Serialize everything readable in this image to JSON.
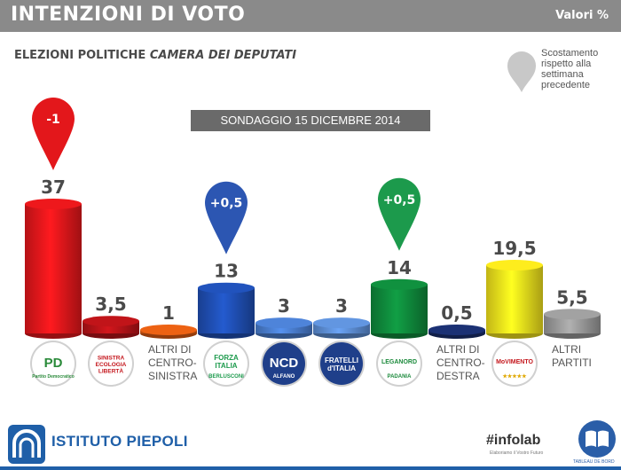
{
  "header": {
    "title": "INTENZIONI DI VOTO",
    "unit": "Valori %"
  },
  "subtitle": {
    "prefix": "ELEZIONI POLITICHE ",
    "emphasis": "CAMERA DEI DEPUTATI"
  },
  "legend": {
    "text": "Scostamento rispetto alla settimana precedente"
  },
  "survey_label": "SONDAGGIO 15 DICEMBRE 2014",
  "chart_data": {
    "type": "bar",
    "title": "INTENZIONI DI VOTO",
    "subtitle": "ELEZIONI POLITICHE CAMERA DEI DEPUTATI",
    "ylabel": "Valori %",
    "ylim": [
      0,
      40
    ],
    "grid": false,
    "categories": [
      "Partito Democratico",
      "Sinistra Ecologia Libertà",
      "ALTRI DI CENTRO-SINISTRA",
      "Forza Italia",
      "NCD Alfano",
      "Fratelli d'Italia",
      "Lega Nord",
      "ALTRI DI CENTRO-DESTRA",
      "Movimento 5 Stelle",
      "ALTRI PARTITI"
    ],
    "values": [
      37,
      3.5,
      1,
      13,
      3,
      3,
      14,
      0.5,
      19.5,
      5.5
    ],
    "value_labels": [
      "37",
      "3,5",
      "1",
      "13",
      "3",
      "3",
      "14",
      "0,5",
      "19,5",
      "5,5"
    ],
    "colors": [
      "#e3171b",
      "#b81318",
      "#e25d12",
      "#1f4fb4",
      "#4a7ed0",
      "#5d8fd6",
      "#0f8a3c",
      "#1a2f6e",
      "#f2e21c",
      "#9a9a9a"
    ],
    "changes": [
      {
        "index": 0,
        "label": "-1",
        "color": "#e3171b"
      },
      {
        "index": 3,
        "label": "+0,5",
        "color": "#2c56b2"
      },
      {
        "index": 6,
        "label": "+0,5",
        "color": "#1c9a4c"
      }
    ],
    "text_labels": [
      {
        "index": 2,
        "lines": [
          "ALTRI DI",
          "CENTRO-",
          "SINISTRA"
        ]
      },
      {
        "index": 7,
        "lines": [
          "ALTRI DI",
          "CENTRO-",
          "DESTRA"
        ]
      },
      {
        "index": 9,
        "lines": [
          "ALTRI",
          "PARTITI"
        ]
      }
    ],
    "logos": [
      {
        "index": 0,
        "icon": "pd-logo",
        "bg": "#ffffff",
        "ring": "#d0d0d0",
        "lines": [
          "PD"
        ],
        "sub": "Partito Democratico",
        "text_color": "#2a8a3a"
      },
      {
        "index": 1,
        "icon": "sel-logo",
        "bg": "#ffffff",
        "ring": "#d0d0d0",
        "lines": [
          "SINISTRA",
          "ECOLOGIA",
          "LIBERTÀ"
        ],
        "sub": "",
        "text_color": "#c4161c"
      },
      {
        "index": 3,
        "icon": "forza-italia-logo",
        "bg": "#ffffff",
        "ring": "#d0d0d0",
        "lines": [
          "FORZA",
          "ITALIA"
        ],
        "sub": "BERLUSCONI",
        "text_color": "#1c9a4c"
      },
      {
        "index": 4,
        "icon": "ncd-logo",
        "bg": "#1f3f8a",
        "ring": "#d0d0d0",
        "lines": [
          "NCD"
        ],
        "sub": "ALFANO",
        "text_color": "#ffffff"
      },
      {
        "index": 5,
        "icon": "fratelli-italia-logo",
        "bg": "#1f3f8a",
        "ring": "#d0d0d0",
        "lines": [
          "FRATELLI",
          "d'ITALIA"
        ],
        "sub": "",
        "text_color": "#ffffff"
      },
      {
        "index": 6,
        "icon": "lega-nord-logo",
        "bg": "#ffffff",
        "ring": "#d0d0d0",
        "lines": [
          "LEGANORD"
        ],
        "sub": "PADANIA",
        "text_color": "#1c8a3c"
      },
      {
        "index": 8,
        "icon": "movimento-5-stelle-logo",
        "bg": "#ffffff",
        "ring": "#d0d0d0",
        "lines": [
          "MoVIMENTO"
        ],
        "sub": "★★★★★",
        "text_color": "#c4161c"
      }
    ]
  },
  "footer": {
    "brand": "ISTITUTO PIEPOLI",
    "infolab": "#infolab",
    "infolab_sub": "Elaboriamo il Vostro Futuro",
    "tableau": "TABLEAU DE BORD"
  }
}
